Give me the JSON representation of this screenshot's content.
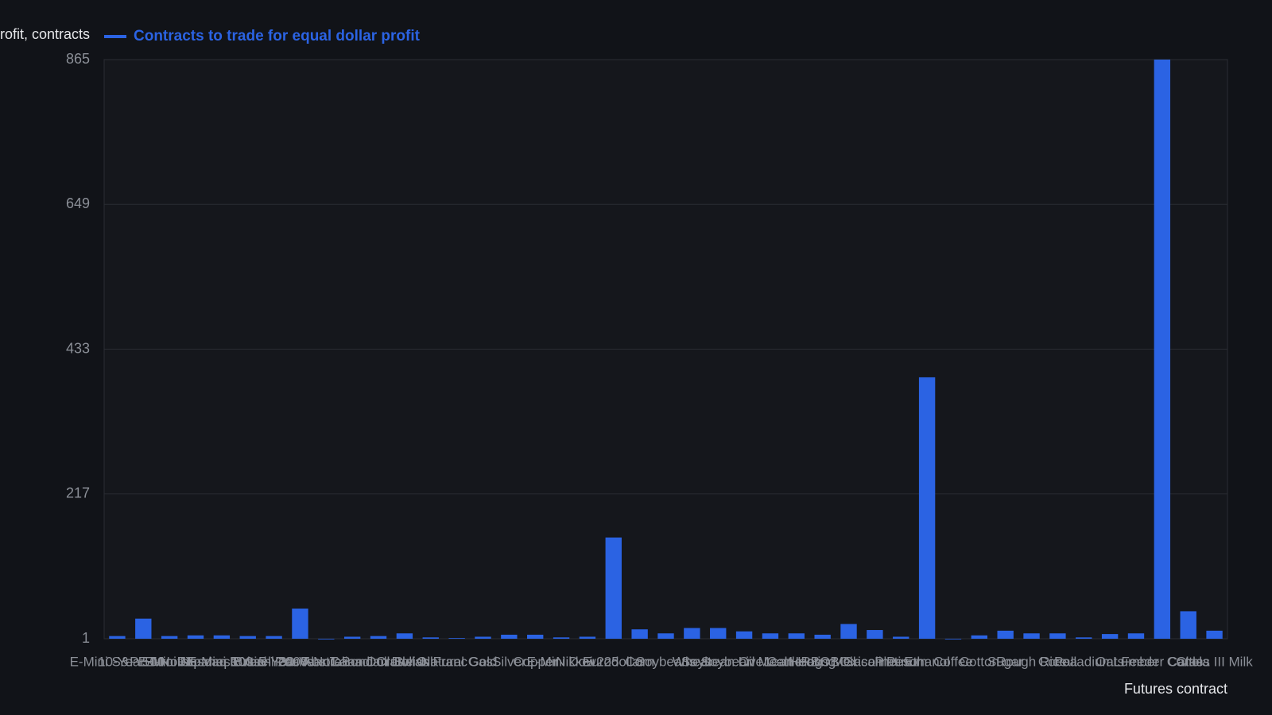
{
  "chart_data": {
    "type": "bar",
    "y_axis_label": "Contracts to trade for equal dollar profit, contracts",
    "x_axis_label": "Futures contract",
    "categories": [
      "E-Mini S&P 500",
      "10-Year T-Note",
      "Euro FX",
      "E-Mini Nasdaq 100",
      "Japanese Yen",
      "E-Mini Russell 2000",
      "British Pound",
      "5-Year T-Note",
      "30-Year T-Bond",
      "Australian Dollar",
      "Canadian Dollar",
      "Crude Oil",
      "Swiss Franc",
      "Natural Gas",
      "Gold",
      "Silver",
      "Copper",
      "E-Mini Dow",
      "Nikkei 225",
      "Eurodollar",
      "Corn",
      "Soybeans",
      "Wheat",
      "Soybean Oil",
      "Soybean Meal",
      "Live Cattle",
      "Lean Hogs",
      "Heating Oil",
      "RBOB Gasoline",
      "Mexican Peso",
      "Platinum",
      "Ethanol",
      "Coffee",
      "Cotton",
      "Sugar",
      "Rough Rice",
      "Cocoa",
      "Palladium",
      "Oats",
      "Lumber",
      "Feeder Cattle",
      "Canola",
      "Class III Milk"
    ],
    "series": [
      {
        "name": "Contracts to trade for equal dollar profit",
        "color": "#2b63e3",
        "values": [
          5,
          31,
          5,
          6,
          6,
          5,
          5,
          46,
          0,
          4,
          5,
          9,
          3,
          2,
          4,
          7,
          7,
          3,
          4,
          152,
          15,
          9,
          17,
          17,
          12,
          9,
          9,
          7,
          23,
          14,
          4,
          391,
          0,
          6,
          13,
          9,
          9,
          3,
          8,
          9,
          865,
          42,
          13
        ]
      }
    ],
    "ylim": [
      1,
      865
    ],
    "yticks": [
      1,
      217,
      433,
      649,
      865
    ],
    "grid": true,
    "legend": "top-left"
  }
}
